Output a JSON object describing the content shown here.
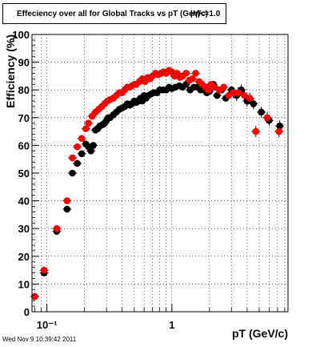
{
  "title": "Effeciency over all for Global Tracks vs pT (GeV/c)",
  "title_overlay": "|η|<=1.0",
  "footer_timestamp": "Wed Nov  9 10:39:42 2011",
  "chart_data": {
    "type": "scatter",
    "xlabel": "pT (GeV/c)",
    "ylabel": "Efficiency (%)",
    "xscale": "log",
    "xlim": [
      0.076,
      8.5
    ],
    "ylim": [
      0,
      100
    ],
    "yticks": [
      0,
      10,
      20,
      30,
      40,
      50,
      60,
      70,
      80,
      90,
      100
    ],
    "xtick_labels": [
      "10⁻¹",
      "1"
    ],
    "xtick_values": [
      0.1,
      1
    ],
    "grid": true,
    "series": [
      {
        "color": "#000000",
        "x": [
          0.08,
          0.095,
          0.12,
          0.145,
          0.16,
          0.175,
          0.19,
          0.205,
          0.215,
          0.225,
          0.235,
          0.245,
          0.255,
          0.265,
          0.28,
          0.29,
          0.3,
          0.31,
          0.32,
          0.34,
          0.36,
          0.38,
          0.4,
          0.42,
          0.44,
          0.46,
          0.48,
          0.5,
          0.52,
          0.54,
          0.56,
          0.58,
          0.6,
          0.62,
          0.65,
          0.68,
          0.72,
          0.76,
          0.8,
          0.85,
          0.9,
          0.95,
          1.0,
          1.07,
          1.15,
          1.22,
          1.3,
          1.4,
          1.5,
          1.6,
          1.7,
          1.8,
          1.9,
          2.0,
          2.15,
          2.3,
          2.5,
          2.7,
          3.0,
          3.3,
          3.6,
          4.0,
          4.5,
          5.2,
          6.0,
          7.3
        ],
        "y": [
          5.5,
          14,
          29,
          37,
          50,
          53.5,
          57,
          60.5,
          59.5,
          58,
          60,
          65.5,
          66,
          67,
          67.5,
          68,
          69,
          70,
          70,
          71,
          72,
          73,
          73.5,
          74,
          75,
          74.5,
          75,
          76,
          75.5,
          76,
          77,
          76,
          78,
          77,
          78,
          78.5,
          79,
          79,
          80,
          80,
          80,
          81,
          80.5,
          81,
          81.5,
          81,
          82,
          80,
          81,
          81,
          80,
          81,
          79,
          79.5,
          82,
          78,
          80,
          77,
          80,
          78,
          80,
          76,
          75,
          72,
          69,
          67
        ]
      },
      {
        "color": "#ff0000",
        "x": [
          0.08,
          0.095,
          0.12,
          0.145,
          0.16,
          0.175,
          0.19,
          0.205,
          0.215,
          0.23,
          0.245,
          0.26,
          0.275,
          0.29,
          0.305,
          0.32,
          0.34,
          0.36,
          0.38,
          0.4,
          0.42,
          0.44,
          0.46,
          0.48,
          0.5,
          0.52,
          0.55,
          0.58,
          0.61,
          0.64,
          0.67,
          0.7,
          0.74,
          0.78,
          0.82,
          0.86,
          0.9,
          0.95,
          1.0,
          1.05,
          1.1,
          1.16,
          1.22,
          1.3,
          1.38,
          1.46,
          1.55,
          1.65,
          1.75,
          1.85,
          1.95,
          2.05,
          2.2,
          2.4,
          2.6,
          2.85,
          3.1,
          3.4,
          3.8,
          4.2,
          4.7,
          5.8,
          7.2
        ],
        "y": [
          5.5,
          15,
          30,
          40,
          55.5,
          59.5,
          62.5,
          66,
          68,
          70.5,
          72,
          73,
          74,
          75,
          76,
          76.5,
          77,
          78,
          79,
          79,
          80,
          81,
          81,
          81.5,
          82,
          82,
          83,
          84,
          83,
          84.5,
          84,
          85,
          86,
          85.5,
          86,
          86.5,
          86,
          87,
          86.5,
          85,
          86,
          84.5,
          85,
          86,
          83.5,
          84,
          86,
          83,
          82,
          81,
          80,
          82,
          81,
          80,
          81,
          78,
          79,
          79,
          78,
          77,
          65,
          70,
          65
        ]
      }
    ]
  }
}
